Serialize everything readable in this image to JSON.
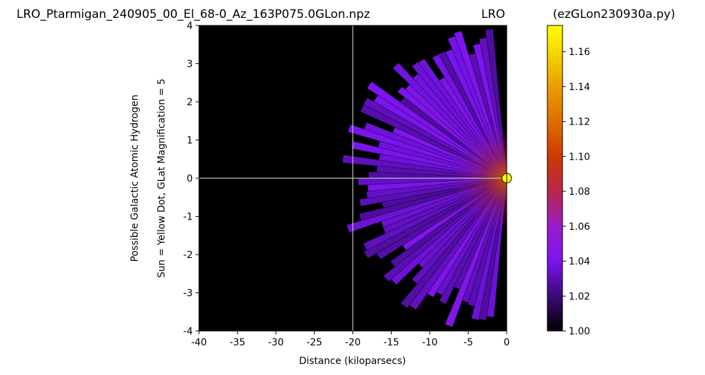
{
  "header": {
    "left_title": "LRO_Ptarmigan_240905_00_El_68-0_Az_163P075.0GLon.npz",
    "center_title": "LRO",
    "right_title": "(ezGLon230930a.py)"
  },
  "chart_data": {
    "type": "heatmap",
    "xlabel": "Distance (kiloparsecs)",
    "ylabel_lines": [
      "Possible Galactic Atomic Hydrogen",
      "Sun = Yellow Dot, GLat Magnification = 5"
    ],
    "xlim": [
      -40,
      0
    ],
    "ylim": [
      -4,
      4
    ],
    "x_ticks": [
      -40,
      -35,
      -30,
      -25,
      -20,
      -15,
      -10,
      -5,
      0
    ],
    "y_ticks": [
      -4,
      -3,
      -2,
      -1,
      0,
      1,
      2,
      3,
      4
    ],
    "background_color": "#000000",
    "crosshair": {
      "x": -20,
      "y": 0,
      "color": "#bfbfbf"
    },
    "sun_marker": {
      "x": 0,
      "y": 0,
      "color": "#ffff00",
      "label": "Sun"
    },
    "fan": {
      "center": [
        0,
        0
      ],
      "direction_deg_min": 95,
      "direction_deg_max": 265,
      "max_radius_kpc": 22,
      "typical_value": 1.035,
      "peak_value": 1.09,
      "peak_distance_kpc": 5
    },
    "colorbar": {
      "colormap": "gnuplot",
      "min": 1.0,
      "max": 1.175,
      "ticks": [
        "1.00",
        "1.02",
        "1.04",
        "1.06",
        "1.08",
        "1.10",
        "1.12",
        "1.14",
        "1.16"
      ],
      "stops": [
        {
          "value": 1.0,
          "color": "#000000"
        },
        {
          "value": 1.02,
          "color": "#3a0a78"
        },
        {
          "value": 1.04,
          "color": "#7a14f0"
        },
        {
          "value": 1.06,
          "color": "#9a1cc8"
        },
        {
          "value": 1.08,
          "color": "#b8254d"
        },
        {
          "value": 1.1,
          "color": "#cc3a00"
        },
        {
          "value": 1.12,
          "color": "#de6e00"
        },
        {
          "value": 1.14,
          "color": "#ec9c00"
        },
        {
          "value": 1.16,
          "color": "#f6d800"
        },
        {
          "value": 1.175,
          "color": "#ffff00"
        }
      ]
    }
  }
}
